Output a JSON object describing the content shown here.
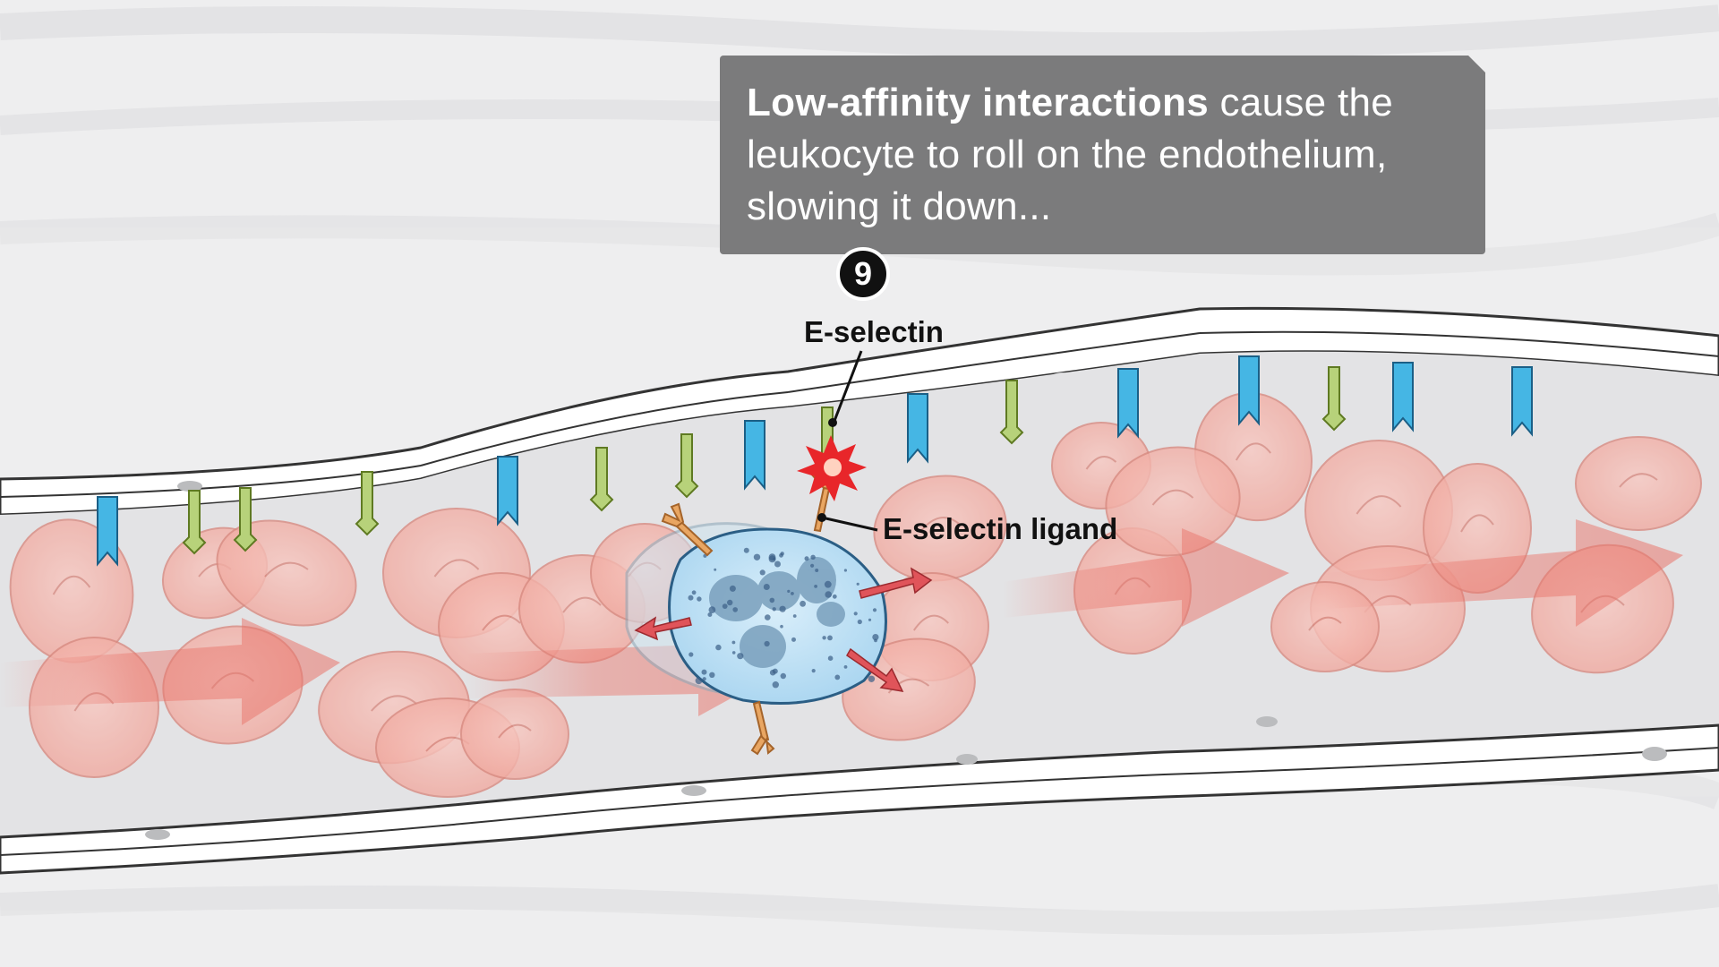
{
  "callout": {
    "bold_text": "Low-affinity interactions",
    "rest_text": " cause the leukocyte to roll on the endothelium, slowing it down..."
  },
  "step_number": "9",
  "labels": {
    "e_selectin": "E-selectin",
    "e_selectin_ligand": "E-selectin ligand"
  },
  "colors": {
    "callout_bg": "#7b7b7c",
    "rbc_fill": "#f4b4ab",
    "leukocyte_fill": "#bfe0f4",
    "blue_receptor": "#45b6e4",
    "green_selectin": "#b7d27a",
    "ligand_orange": "#e9a662",
    "arrow_red": "#e0545a"
  }
}
